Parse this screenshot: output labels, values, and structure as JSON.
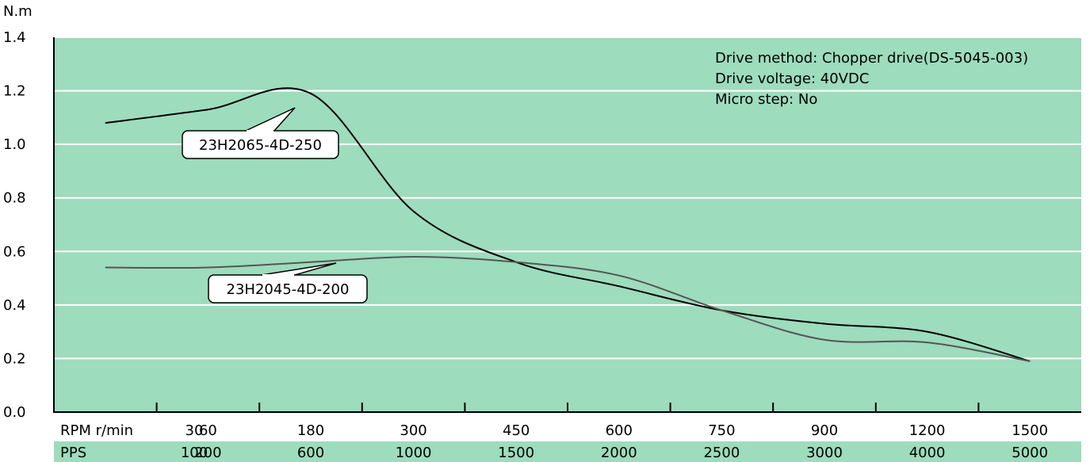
{
  "chart_data": {
    "type": "line",
    "y_unit": "N.m",
    "ylim": [
      0,
      1.4
    ],
    "yticks": [
      "0.0",
      "0.2",
      "0.4",
      "0.6",
      "0.8",
      "1.0",
      "1.2",
      "1.4"
    ],
    "grid": true,
    "rpm_label": "RPM r/min",
    "pps_label": "PPS",
    "rpm": [
      "30",
      "60",
      "180",
      "300",
      "450",
      "600",
      "750",
      "900",
      "1200",
      "1500"
    ],
    "pps": [
      "100",
      "200",
      "600",
      "1000",
      "1500",
      "2000",
      "2500",
      "3000",
      "4000",
      "5000"
    ],
    "info": [
      "Drive method: Chopper drive(DS-5045-003)",
      "Drive voltage: 40VDC",
      "Micro step: No"
    ],
    "series": [
      {
        "name": "23H2065-4D-250",
        "color": "#000000",
        "points": [
          [
            30,
            1.08
          ],
          [
            60,
            1.13
          ],
          [
            180,
            1.19
          ],
          [
            300,
            0.75
          ],
          [
            450,
            0.56
          ],
          [
            600,
            0.47
          ],
          [
            750,
            0.38
          ],
          [
            900,
            0.33
          ],
          [
            1200,
            0.3
          ],
          [
            1500,
            0.19
          ]
        ]
      },
      {
        "name": "23H2045-4D-200",
        "color": "#555555",
        "points": [
          [
            30,
            0.54
          ],
          [
            60,
            0.54
          ],
          [
            180,
            0.56
          ],
          [
            300,
            0.58
          ],
          [
            450,
            0.56
          ],
          [
            600,
            0.51
          ],
          [
            750,
            0.38
          ],
          [
            900,
            0.27
          ],
          [
            1200,
            0.26
          ],
          [
            1500,
            0.19
          ]
        ]
      }
    ],
    "colors": {
      "plot_bg": "#9ddcbc",
      "grid": "#ffffff",
      "pps_band": "#9ddcbc"
    }
  }
}
